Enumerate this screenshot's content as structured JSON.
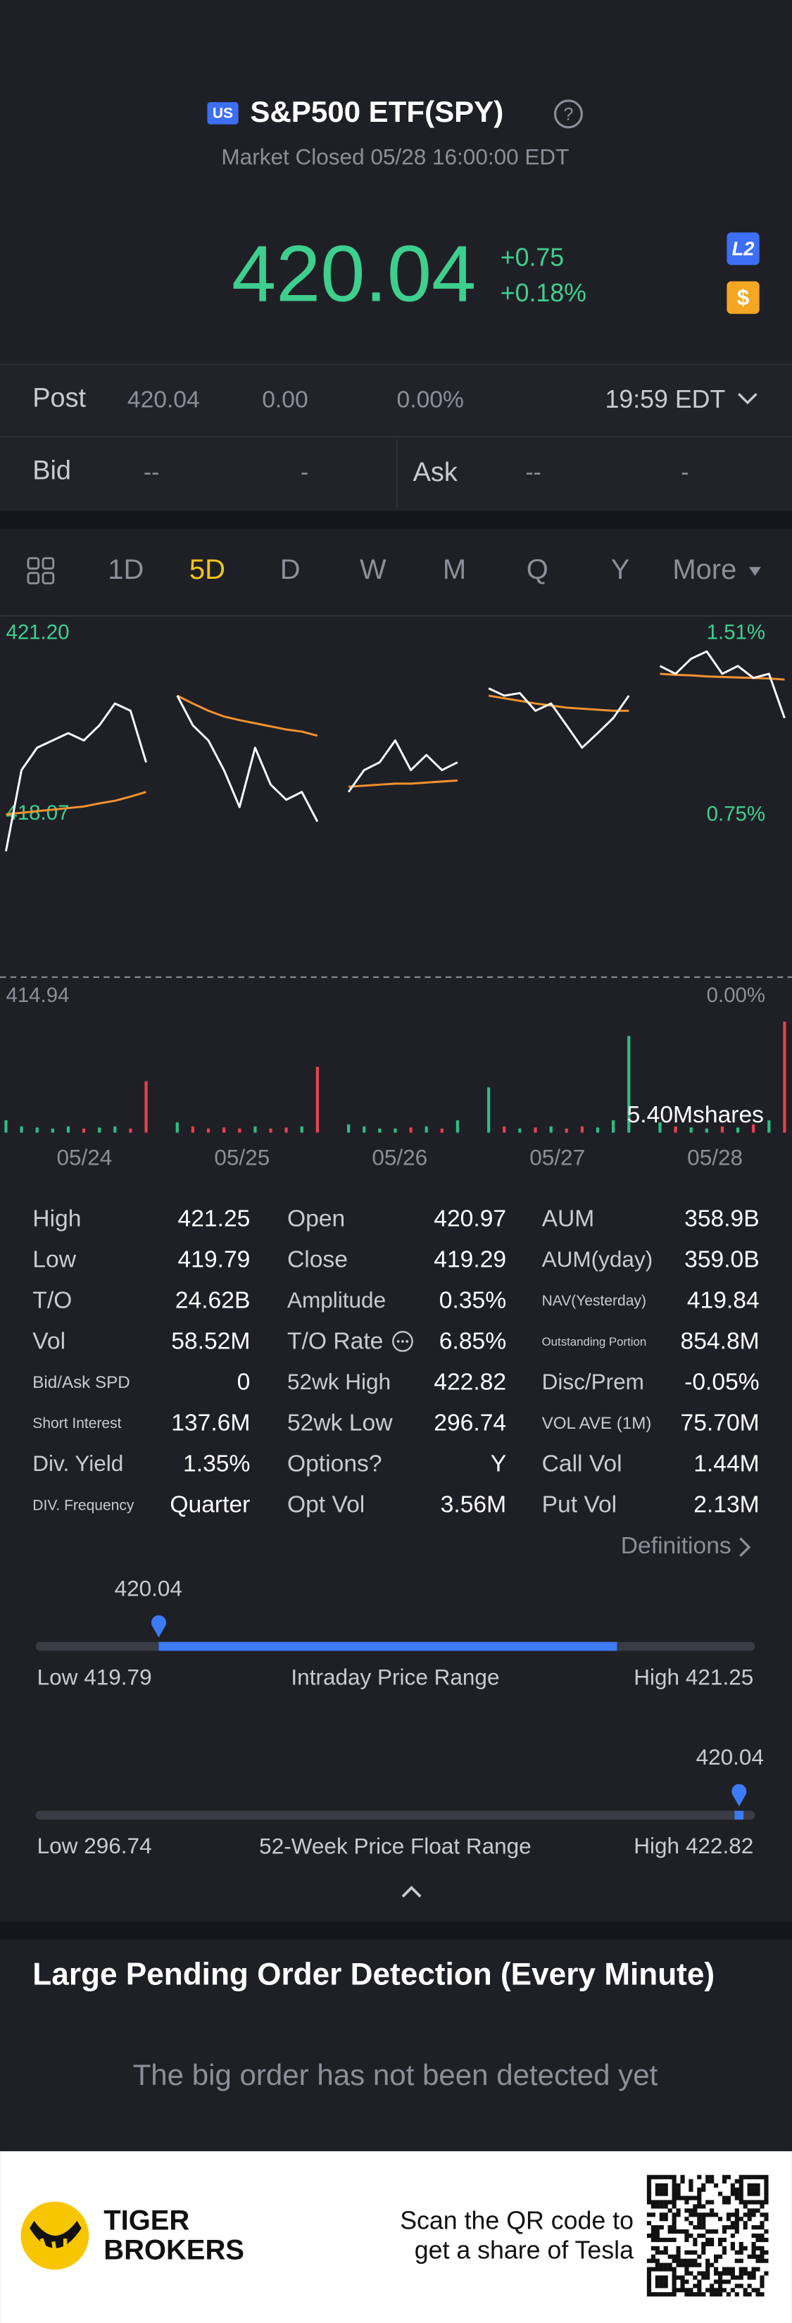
{
  "header": {
    "badge": "US",
    "title": "S&P500 ETF(SPY)",
    "status": "Market Closed 05/28 16:00:00 EDT"
  },
  "quote": {
    "price": "420.04",
    "change": "+0.75",
    "change_pct": "+0.18%",
    "badge_l2": "L2",
    "badge_s": "$"
  },
  "post": {
    "label": "Post",
    "price": "420.04",
    "change": "0.00",
    "change_pct": "0.00%",
    "time": "19:59 EDT"
  },
  "bidask": {
    "bid_label": "Bid",
    "bid_price": "--",
    "bid_size": "-",
    "ask_label": "Ask",
    "ask_price": "--",
    "ask_size": "-"
  },
  "tabs": {
    "items": [
      "1D",
      "5D",
      "D",
      "W",
      "M",
      "Q",
      "Y",
      "More"
    ],
    "active": 1
  },
  "chart_data": {
    "type": "line",
    "x": [
      0,
      1,
      2,
      3,
      4,
      5,
      6,
      7,
      8,
      9,
      10,
      11,
      12,
      13,
      14,
      15,
      16,
      17,
      18,
      19,
      20,
      21,
      22,
      23,
      24,
      25,
      26,
      27,
      28,
      29,
      30,
      31,
      32,
      33,
      34,
      35,
      36,
      37,
      38,
      39,
      40,
      41,
      42,
      43,
      44,
      45,
      46,
      47,
      48,
      49,
      50
    ],
    "xlim": [
      0,
      50
    ],
    "series": [
      {
        "name": "Price",
        "color": "#ffffff",
        "values": [
          417.36,
          418.92,
          419.35,
          419.49,
          419.63,
          419.49,
          419.78,
          420.2,
          420.06,
          419.07,
          null,
          420.35,
          419.78,
          419.49,
          418.92,
          418.21,
          419.35,
          418.64,
          418.35,
          418.5,
          417.93,
          null,
          418.5,
          418.92,
          419.07,
          419.49,
          418.92,
          419.21,
          418.92,
          419.07,
          null,
          420.49,
          420.35,
          420.4,
          420.06,
          420.2,
          419.78,
          419.35,
          419.63,
          419.92,
          420.35,
          null,
          420.92,
          420.77,
          421.06,
          421.2,
          420.77,
          420.92,
          420.69,
          420.77,
          419.92
        ]
      },
      {
        "name": "Average",
        "color": "#f5922f",
        "values": [
          418.07,
          418.1,
          418.13,
          418.16,
          418.19,
          418.22,
          418.28,
          418.33,
          418.41,
          418.5,
          null,
          420.35,
          420.2,
          420.06,
          419.95,
          419.88,
          419.82,
          419.76,
          419.7,
          419.66,
          419.58,
          null,
          418.6,
          418.62,
          418.64,
          418.66,
          418.66,
          418.68,
          418.7,
          418.72,
          null,
          420.35,
          420.3,
          420.25,
          420.2,
          420.16,
          420.12,
          420.1,
          420.08,
          420.06,
          420.06,
          null,
          420.77,
          420.75,
          420.74,
          420.72,
          420.71,
          420.7,
          420.69,
          420.68,
          420.66
        ]
      }
    ],
    "ylim": [
      414.94,
      421.2
    ],
    "yticks": [
      {
        "value": 421.2,
        "label": "421.20"
      },
      418.07,
      414.94
    ],
    "y2lim": [
      0,
      1.51
    ],
    "y2ticks": [
      {
        "value": 1.51,
        "label": "1.51%"
      },
      {
        "value": 0.75,
        "label": "0.75%"
      },
      {
        "value": 0,
        "label": "0.00%"
      }
    ],
    "tick_color": "#3ecf8e",
    "date_labels": [
      "05/24",
      "05/25",
      "05/26",
      "05/27",
      "05/28"
    ],
    "volume": {
      "label": "5.40Mshares",
      "ylim": [
        0,
        5.4
      ],
      "up_color": "#2ebd85",
      "down_color": "#e8414f",
      "values": [
        0.6,
        0.3,
        0.25,
        0.2,
        0.3,
        0.2,
        0.25,
        0.3,
        0.2,
        2.5,
        null,
        0.5,
        0.3,
        0.2,
        0.25,
        0.2,
        0.3,
        0.2,
        0.25,
        0.3,
        3.2,
        null,
        0.4,
        0.3,
        0.2,
        0.2,
        0.25,
        0.3,
        0.2,
        0.6,
        null,
        2.2,
        0.3,
        0.2,
        0.25,
        0.3,
        0.2,
        0.3,
        0.25,
        0.6,
        4.7,
        null,
        0.5,
        0.3,
        0.25,
        0.2,
        0.3,
        0.25,
        0.4,
        0.6,
        5.4
      ]
    }
  },
  "stats": {
    "rows": [
      [
        "High",
        "421.25",
        "Open",
        "420.97",
        "AUM",
        "358.9B"
      ],
      [
        "Low",
        "419.79",
        "Close",
        "419.29",
        "AUM(yday)",
        "359.0B"
      ],
      [
        "T/O",
        "24.62B",
        "Amplitude",
        "0.35%",
        "NAV(Yesterday)",
        "419.84"
      ],
      [
        "Vol",
        "58.52M",
        "T/O Rate",
        "6.85%",
        "Outstanding Portion",
        "854.8M"
      ],
      [
        "Bid/Ask SPD",
        "0",
        "52wk High",
        "422.82",
        "Disc/Prem",
        "-0.05%"
      ],
      [
        "Short Interest",
        "137.6M",
        "52wk Low",
        "296.74",
        "VOL AVE (1M)",
        "75.70M"
      ],
      [
        "Div. Yield",
        "1.35%",
        "Options?",
        "Y",
        "Call Vol",
        "1.44M"
      ],
      [
        "DIV. Frequency",
        "Quarter",
        "Opt Vol",
        "3.56M",
        "Put Vol",
        "2.13M"
      ]
    ],
    "definitions": "Definitions"
  },
  "intraday": {
    "current": 420.04,
    "low_label": "Low",
    "low": 419.79,
    "title": "Intraday Price Range",
    "high_label": "High",
    "high": 421.25
  },
  "week52": {
    "current": 420.04,
    "low_label": "Low",
    "low": 296.74,
    "title": "52-Week Price Float Range",
    "high_label": "High",
    "high": 422.82
  },
  "orders": {
    "title": "Large Pending Order Detection (Every Minute)",
    "message": "The big order has not been detected yet"
  },
  "footer": {
    "brand_line1": "TIGER",
    "brand_line2": "BROKERS",
    "promo_line1": "Scan the QR code to",
    "promo_line2": "get a share of Tesla"
  }
}
